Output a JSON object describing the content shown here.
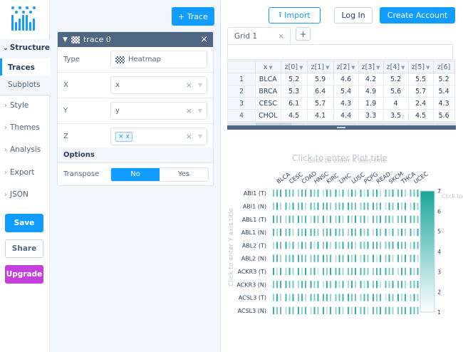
{
  "sidebar": {
    "logo": "plotly-logo-icon",
    "sections": [
      {
        "label": "Structure",
        "open": true
      },
      {
        "label": "Traces",
        "active": true
      },
      {
        "label": "Subplots"
      },
      {
        "label": "Style"
      },
      {
        "label": "Themes"
      },
      {
        "label": "Analysis"
      },
      {
        "label": "Export"
      },
      {
        "label": "JSON"
      }
    ],
    "save_label": "Save",
    "share_label": "Share",
    "upgrade_label": "Upgrade"
  },
  "panel": {
    "add_trace_label": "+ Trace",
    "trace_title": "trace 0",
    "fields": {
      "type_label": "Type",
      "type_value": "Heatmap",
      "x_label": "X",
      "x_value": "x",
      "y_label": "Y",
      "y_value": "y",
      "z_label": "Z",
      "z_value": "x"
    },
    "options_label": "Options",
    "transpose_label": "Transpose",
    "transpose_no": "No",
    "transpose_yes": "Yes"
  },
  "header": {
    "import_label": "Import",
    "login_label": "Log In",
    "create_account_label": "Create Account"
  },
  "grid": {
    "tab_label": "Grid 1",
    "columns": [
      "x",
      "z[0]",
      "z[1]",
      "z[2]",
      "z[3]",
      "z[4]",
      "z[5]",
      "z[6]"
    ],
    "rows": [
      {
        "idx": "1",
        "cells": [
          "BLCA",
          "5.2",
          "5.9",
          "4.6",
          "4.2",
          "5.2",
          "5.5",
          "5.2"
        ]
      },
      {
        "idx": "2",
        "cells": [
          "BRCA",
          "5.3",
          "6.4",
          "5.4",
          "4.9",
          "5.6",
          "5.7",
          "5.4"
        ]
      },
      {
        "idx": "3",
        "cells": [
          "CESC",
          "6.1",
          "5.7",
          "4.3",
          "1.9",
          "4",
          "2.4",
          "4.3"
        ]
      },
      {
        "idx": "4",
        "cells": [
          "CHOL",
          "4.5",
          "4.1",
          "4.4",
          "3.3",
          "3.5",
          "4.5",
          "5.6"
        ]
      }
    ]
  },
  "plot": {
    "title_placeholder": "Click to enter Plot title",
    "x_axis_placeholder": "Click to enter X axis title",
    "y_axis_placeholder": "Click to enter Y axis title",
    "colorbar_placeholder": "Click to enter",
    "colors": {
      "high": "#1aa69a",
      "low": "#ffffff"
    }
  },
  "chart_data": {
    "type": "heatmap",
    "title": "",
    "xlabel": "",
    "ylabel": "",
    "x_categories": [
      "BLCA",
      "CESC",
      "COAD",
      "HNSC",
      "KIRC",
      "LIHC",
      "LUSC",
      "PCPG",
      "READ",
      "SKCM",
      "THCA",
      "UCEC"
    ],
    "y_categories": [
      "ABI1 (T)",
      "ABI1 (N)",
      "ABL1 (T)",
      "ABL1 (N)",
      "ABL2 (T)",
      "ABL2 (N)",
      "ACKR3 (T)",
      "ACKR3 (N)",
      "ACSL3 (T)",
      "ACSL3 (N)"
    ],
    "colorbar_ticks": [
      1,
      2,
      3,
      4,
      5,
      6,
      7
    ],
    "zlim": [
      1,
      7
    ]
  }
}
